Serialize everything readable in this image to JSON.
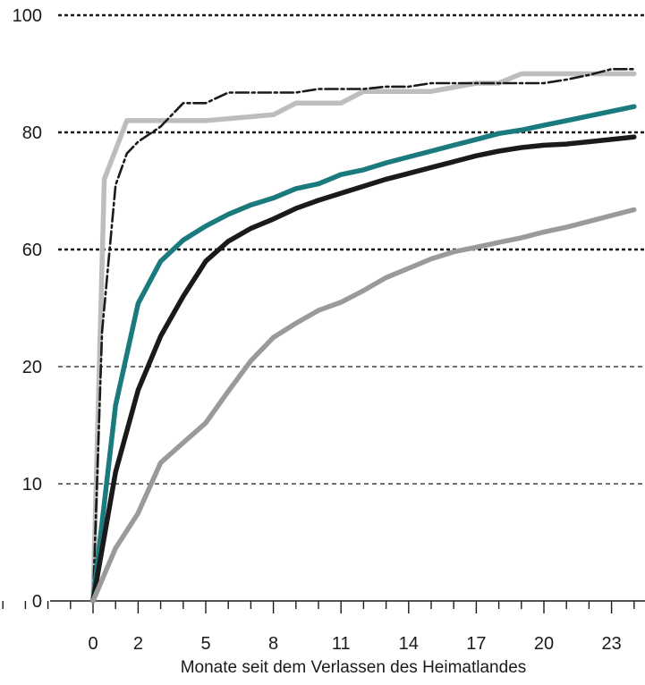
{
  "chart_data": {
    "type": "line",
    "title": "",
    "xlabel": "Monate seit dem Verlassen des Heimatlandes",
    "ylabel": "",
    "x_ticks": [
      0,
      2,
      5,
      8,
      11,
      14,
      17,
      20,
      23
    ],
    "y_tick_labels": [
      "0",
      "10",
      "20",
      "60",
      "80",
      "100"
    ],
    "xlim": [
      -4,
      24
    ],
    "grid": "horizontal dashed",
    "series": [
      {
        "color": "#bdbdbd",
        "style": "solid-thick",
        "x": [
          0,
          0.5,
          1.5,
          3,
          5,
          8,
          9,
          11,
          12,
          15,
          17,
          18,
          19,
          21,
          23,
          24
        ],
        "y_rank": [
          0,
          3.6,
          4.1,
          4.1,
          4.1,
          4.15,
          4.25,
          4.25,
          4.35,
          4.35,
          4.42,
          4.42,
          4.5,
          4.5,
          4.5,
          4.5
        ]
      },
      {
        "color": "#1a1a1a",
        "style": "dash-dot-thin",
        "x": [
          0,
          0.4,
          1,
          1.5,
          2,
          3,
          4,
          5,
          6,
          7,
          9,
          10,
          12,
          13,
          14,
          15,
          16,
          20,
          21,
          22,
          23,
          24
        ],
        "y_rank": [
          0,
          2.3,
          3.55,
          3.82,
          3.92,
          4.05,
          4.25,
          4.25,
          4.34,
          4.34,
          4.34,
          4.37,
          4.37,
          4.39,
          4.39,
          4.42,
          4.42,
          4.42,
          4.45,
          4.49,
          4.54,
          4.54
        ]
      },
      {
        "color": "#1a7a7d",
        "style": "solid-thick",
        "x": [
          0,
          1,
          2,
          3,
          4,
          5,
          6,
          7,
          8,
          9,
          10,
          11,
          12,
          13,
          14,
          15,
          16,
          17,
          18,
          19,
          20,
          21,
          22,
          23,
          24
        ],
        "y_rank": [
          0,
          1.67,
          2.54,
          2.9,
          3.08,
          3.2,
          3.3,
          3.38,
          3.44,
          3.52,
          3.56,
          3.64,
          3.68,
          3.74,
          3.79,
          3.84,
          3.89,
          3.94,
          3.99,
          4.02,
          4.06,
          4.1,
          4.14,
          4.18,
          4.22
        ]
      },
      {
        "color": "#1a1a1a",
        "style": "solid-thick",
        "x": [
          0,
          1,
          2,
          3,
          4,
          5,
          6,
          7,
          8,
          9,
          10,
          11,
          12,
          13,
          14,
          15,
          16,
          17,
          18,
          19,
          20,
          21,
          22,
          23,
          24
        ],
        "y_rank": [
          0,
          1.1,
          1.8,
          2.26,
          2.6,
          2.9,
          3.07,
          3.18,
          3.26,
          3.35,
          3.42,
          3.48,
          3.54,
          3.6,
          3.65,
          3.7,
          3.75,
          3.8,
          3.84,
          3.87,
          3.89,
          3.9,
          3.92,
          3.94,
          3.96
        ]
      },
      {
        "color": "#9a9a9a",
        "style": "solid-thick",
        "x": [
          0,
          1,
          2,
          3,
          4,
          5,
          6,
          7,
          8,
          9,
          10,
          11,
          12,
          13,
          14,
          15,
          16,
          17,
          18,
          19,
          20,
          21,
          22,
          23,
          24
        ],
        "y_rank": [
          0,
          0.45,
          0.75,
          1.18,
          1.35,
          1.52,
          1.79,
          2.05,
          2.25,
          2.37,
          2.48,
          2.55,
          2.65,
          2.76,
          2.84,
          2.92,
          2.98,
          3.02,
          3.06,
          3.1,
          3.15,
          3.19,
          3.24,
          3.29,
          3.34
        ]
      }
    ]
  }
}
